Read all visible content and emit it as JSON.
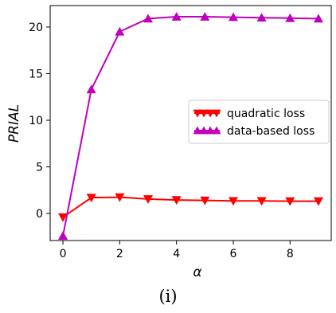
{
  "chart_data": {
    "type": "line",
    "xlabel": "α",
    "ylabel": "PRIAL",
    "xlim": [
      -0.45,
      9.45
    ],
    "ylim": [
      -2.9,
      22.3
    ],
    "xticks": [
      0,
      2,
      4,
      6,
      8
    ],
    "yticks": [
      0,
      5,
      10,
      15,
      20
    ],
    "grid": false,
    "legend_position": "center-right",
    "x": [
      0,
      1,
      2,
      3,
      4,
      5,
      6,
      7,
      8,
      9
    ],
    "series": [
      {
        "name": "quadratic loss",
        "color": "#ff0000",
        "marker": "triangle-down",
        "values": [
          -0.4,
          1.7,
          1.75,
          1.55,
          1.45,
          1.4,
          1.35,
          1.35,
          1.32,
          1.32
        ]
      },
      {
        "name": "data-based loss",
        "color": "#bf00bf",
        "marker": "triangle-up",
        "values": [
          -2.4,
          13.3,
          19.5,
          20.9,
          21.1,
          21.1,
          21.05,
          21.0,
          20.95,
          20.9
        ]
      }
    ]
  },
  "caption": "(i)"
}
